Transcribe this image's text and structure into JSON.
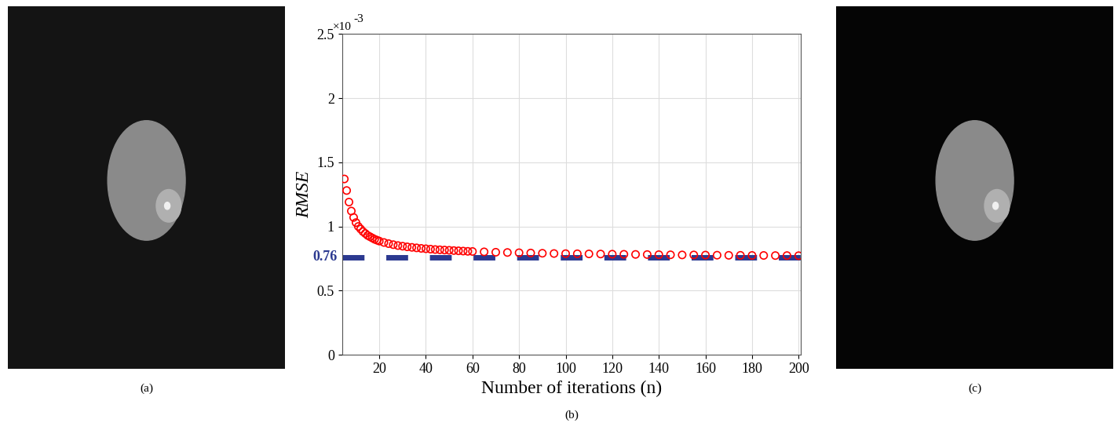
{
  "panels": [
    "(a)",
    "(b)",
    "(c)"
  ],
  "chart_data": {
    "type": "scatter",
    "x": [
      5,
      6,
      7,
      8,
      9,
      10,
      11,
      12,
      13,
      14,
      15,
      16,
      17,
      18,
      19,
      20,
      22,
      24,
      26,
      28,
      30,
      32,
      34,
      36,
      38,
      40,
      42,
      44,
      46,
      48,
      50,
      52,
      54,
      56,
      58,
      60,
      65,
      70,
      75,
      80,
      85,
      90,
      95,
      100,
      105,
      110,
      115,
      120,
      125,
      130,
      135,
      140,
      145,
      150,
      155,
      160,
      165,
      170,
      175,
      180,
      185,
      190,
      195,
      200
    ],
    "values": [
      1.37,
      1.28,
      1.19,
      1.12,
      1.07,
      1.03,
      1.0,
      0.98,
      0.96,
      0.945,
      0.93,
      0.92,
      0.91,
      0.9,
      0.893,
      0.886,
      0.875,
      0.866,
      0.858,
      0.851,
      0.846,
      0.841,
      0.837,
      0.833,
      0.829,
      0.826,
      0.823,
      0.82,
      0.818,
      0.816,
      0.814,
      0.812,
      0.81,
      0.808,
      0.806,
      0.805,
      0.802,
      0.799,
      0.797,
      0.795,
      0.793,
      0.791,
      0.789,
      0.788,
      0.787,
      0.786,
      0.785,
      0.784,
      0.783,
      0.782,
      0.781,
      0.78,
      0.779,
      0.778,
      0.778,
      0.777,
      0.776,
      0.775,
      0.775,
      0.774,
      0.774,
      0.773,
      0.773,
      0.772
    ],
    "color": "#ff0000",
    "marker": "o",
    "xlabel": "Number of iterations (n)",
    "ylabel": "RMSE",
    "annotations": [
      "×10",
      "-3"
    ],
    "reference_line": {
      "value": 0.76,
      "color": "#2b3990",
      "line_style": "dashed"
    },
    "xlim": [
      4,
      201
    ],
    "xticks": [
      20,
      40,
      60,
      80,
      100,
      120,
      140,
      160,
      180,
      200
    ],
    "ylim": [
      0,
      2.5
    ],
    "yticks": [
      0,
      0.5,
      1,
      1.5,
      2,
      2.5
    ],
    "grid": true
  }
}
